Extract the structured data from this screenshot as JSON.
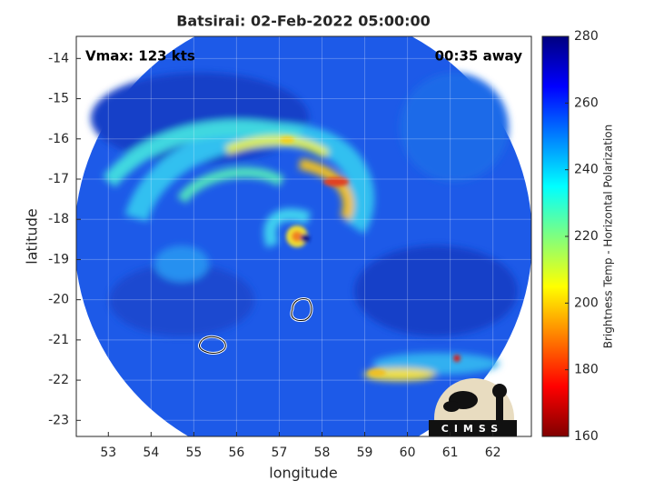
{
  "title": "Batsirai: 02-Feb-2022 05:00:00",
  "annotations": {
    "vmax": "Vmax: 123 kts",
    "time_away": "00:35 away"
  },
  "map": {
    "xlabel": "longitude",
    "ylabel": "latitude",
    "xlim": [
      52.25,
      62.9
    ],
    "ylim": [
      -23.4,
      -13.45
    ],
    "xticks": [
      53,
      54,
      55,
      56,
      57,
      58,
      59,
      60,
      61,
      62
    ],
    "yticks": [
      -23,
      -22,
      -21,
      -20,
      -19,
      -18,
      -17,
      -16,
      -15,
      -14
    ],
    "grid": true
  },
  "colorbar": {
    "label": "Brightness Temp - Horizontal Polarization",
    "lim": [
      160,
      280
    ],
    "ticks": [
      160,
      180,
      200,
      220,
      240,
      260,
      280
    ],
    "colormap": "jet"
  },
  "logo": "CIMSS"
}
